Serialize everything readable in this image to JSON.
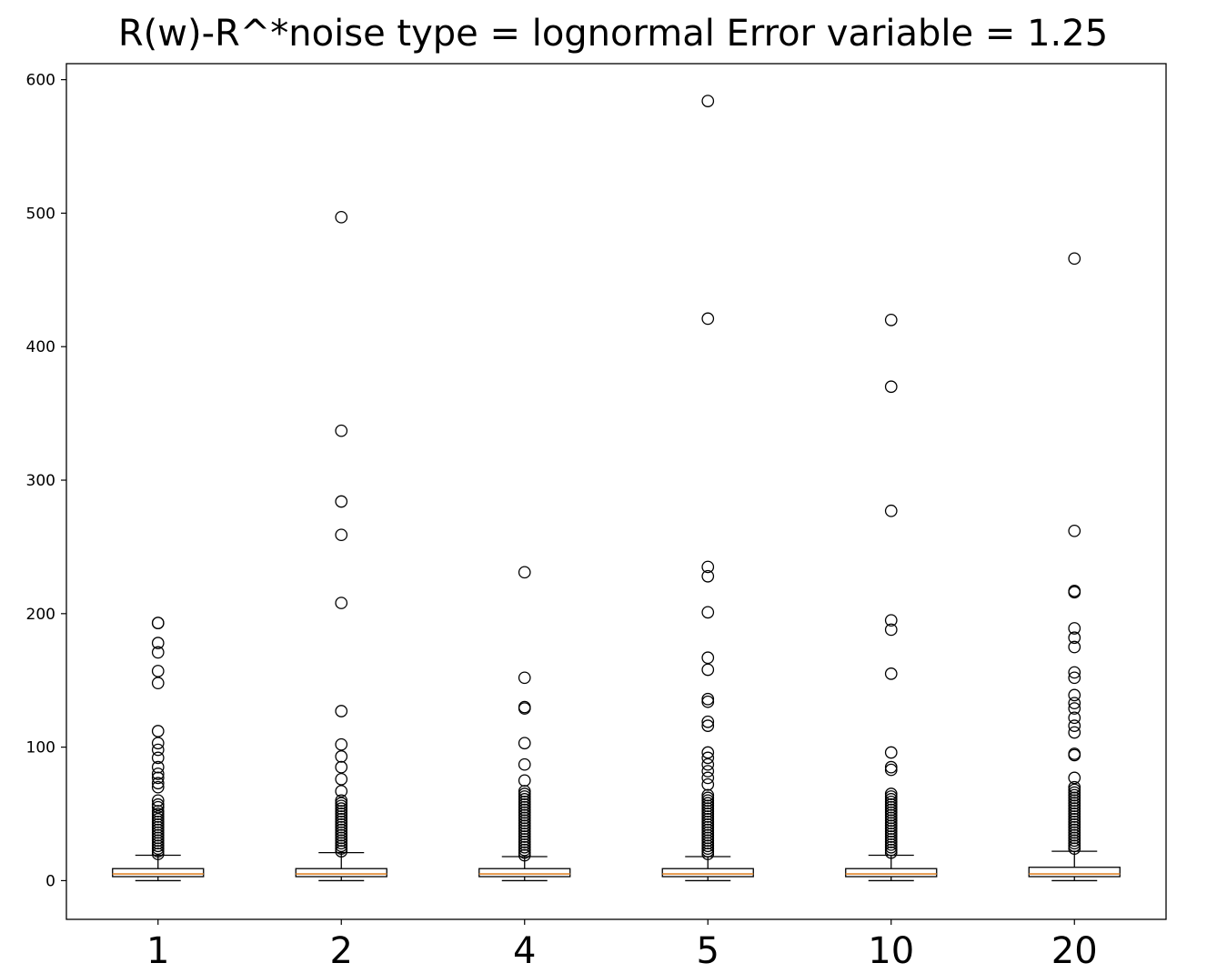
{
  "chart_data": {
    "type": "box",
    "title": "R(w)-R^*noise type = lognormal Error variable = 1.25",
    "xlabel": "",
    "ylabel": "",
    "categories": [
      "1",
      "2",
      "4",
      "5",
      "10",
      "20"
    ],
    "ylim": [
      -29,
      612
    ],
    "yticks": [
      0,
      100,
      200,
      300,
      400,
      500,
      600
    ],
    "grid": false,
    "colors": {
      "box": "#000000",
      "median": "#e0852a",
      "flier": "#000000"
    },
    "boxes": [
      {
        "category": "1",
        "whisker_low": 0,
        "q1": 3,
        "median": 5,
        "q3": 9,
        "whisker_high": 19,
        "fliers": [
          193,
          193,
          178,
          171,
          157,
          148,
          112,
          103,
          98,
          92,
          85,
          80,
          77,
          73,
          70,
          60,
          57,
          55,
          52,
          50,
          48,
          46,
          44,
          42,
          40,
          38,
          36,
          34,
          32,
          30,
          28,
          26,
          24,
          22,
          20
        ]
      },
      {
        "category": "2",
        "whisker_low": 0,
        "q1": 3,
        "median": 5,
        "q3": 9,
        "whisker_high": 21,
        "fliers": [
          497,
          337,
          284,
          259,
          208,
          127,
          102,
          93,
          85,
          76,
          67,
          60,
          58,
          56,
          54,
          52,
          50,
          48,
          46,
          44,
          42,
          40,
          38,
          36,
          34,
          32,
          30,
          28,
          26,
          24,
          22
        ]
      },
      {
        "category": "4",
        "whisker_low": 0,
        "q1": 3,
        "median": 5,
        "q3": 9,
        "whisker_high": 18,
        "fliers": [
          231,
          152,
          130,
          129,
          103,
          87,
          75,
          67,
          65,
          63,
          61,
          59,
          57,
          55,
          53,
          51,
          49,
          47,
          45,
          43,
          41,
          39,
          37,
          35,
          33,
          31,
          29,
          27,
          25,
          23,
          21,
          19
        ]
      },
      {
        "category": "5",
        "whisker_low": 0,
        "q1": 3,
        "median": 5,
        "q3": 9,
        "whisker_high": 18,
        "fliers": [
          584,
          421,
          235,
          228,
          201,
          167,
          158,
          136,
          134,
          119,
          116,
          96,
          92,
          87,
          82,
          77,
          72,
          64,
          62,
          60,
          58,
          56,
          54,
          52,
          50,
          48,
          46,
          44,
          42,
          40,
          38,
          36,
          34,
          32,
          30,
          28,
          26,
          24,
          22,
          20
        ]
      },
      {
        "category": "10",
        "whisker_low": 0,
        "q1": 3,
        "median": 5,
        "q3": 9,
        "whisker_high": 19,
        "fliers": [
          420,
          370,
          277,
          195,
          188,
          155,
          96,
          85,
          83,
          65,
          63,
          61,
          59,
          57,
          55,
          53,
          51,
          49,
          47,
          45,
          43,
          41,
          39,
          37,
          35,
          33,
          31,
          29,
          27,
          25,
          23,
          21
        ]
      },
      {
        "category": "20",
        "whisker_low": 0,
        "q1": 3,
        "median": 5,
        "q3": 10,
        "whisker_high": 22,
        "fliers": [
          466,
          262,
          217,
          216,
          189,
          182,
          175,
          156,
          152,
          139,
          133,
          129,
          122,
          116,
          111,
          95,
          94,
          77,
          70,
          68,
          66,
          64,
          62,
          60,
          58,
          56,
          54,
          52,
          50,
          48,
          46,
          44,
          42,
          40,
          38,
          36,
          34,
          32,
          30,
          28,
          26,
          24
        ]
      }
    ]
  }
}
